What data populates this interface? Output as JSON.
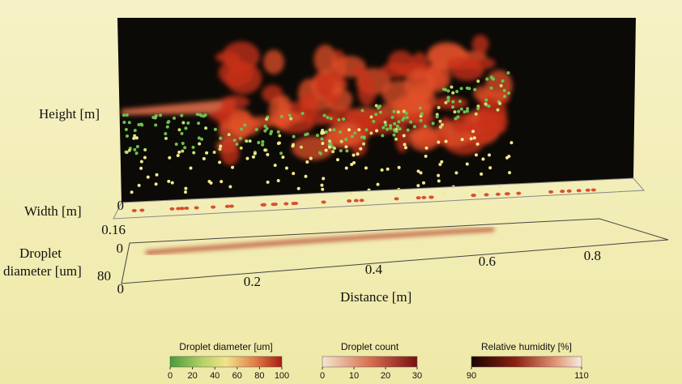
{
  "axes": {
    "height_label": "Height [m]",
    "width_label": "Width [m]",
    "width_ticks": [
      0,
      0.16
    ],
    "diameter_label_lines": [
      "Droplet",
      "diameter [um]"
    ],
    "diameter_ticks": [
      0,
      80
    ],
    "distance_label": "Distance [m]",
    "distance_ticks": [
      0,
      0.2,
      0.4,
      0.6,
      0.8
    ]
  },
  "colorbars": [
    {
      "title": "Droplet diameter [um]",
      "ticks": [
        0,
        20,
        40,
        60,
        80,
        100
      ]
    },
    {
      "title": "Droplet count",
      "ticks": [
        0,
        10,
        20,
        30
      ]
    },
    {
      "title": "Relative humidity [%]",
      "ticks": [
        90,
        110
      ]
    }
  ]
}
